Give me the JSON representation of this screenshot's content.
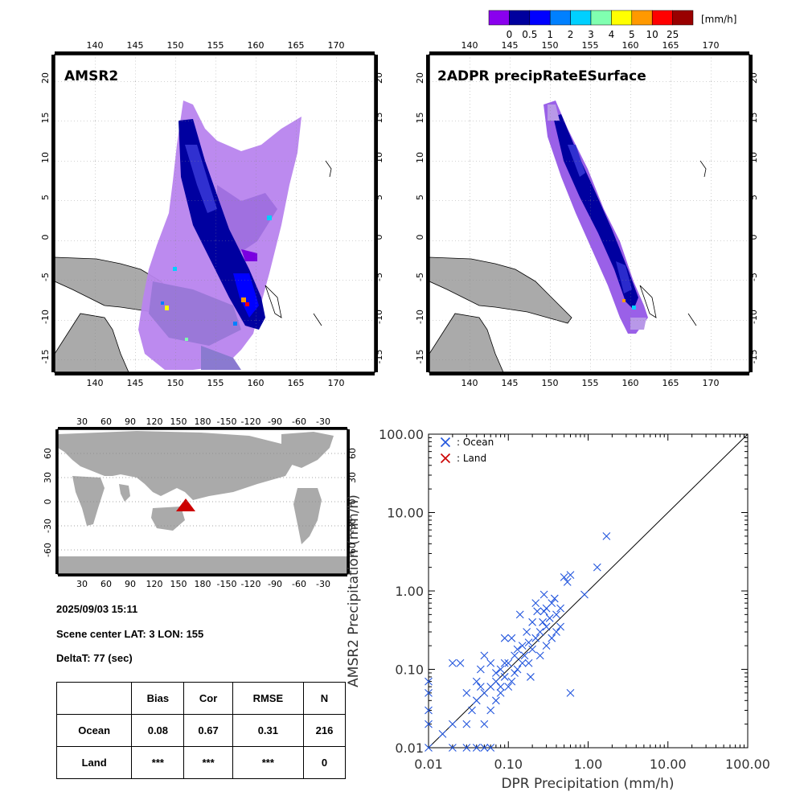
{
  "colorbar": {
    "unit": "[mm/h]",
    "colors": [
      "#8a00ee",
      "#00009e",
      "#0000ff",
      "#0080ff",
      "#00d0ff",
      "#80ffb0",
      "#ffff00",
      "#ff9900",
      "#ff0000",
      "#990000"
    ],
    "labels": [
      "0",
      "0.5",
      "1",
      "2",
      "3",
      "4",
      "5",
      "10",
      "25"
    ]
  },
  "map_lon_ticks": [
    "140",
    "145",
    "150",
    "155",
    "160",
    "165",
    "170"
  ],
  "map_lat_ticks": [
    "20",
    "15",
    "10",
    "5",
    "0",
    "-5",
    "-10",
    "-15"
  ],
  "left_map": {
    "title": "AMSR2"
  },
  "right_map": {
    "title": "2ADPR precipRateESurface"
  },
  "world_map": {
    "lon_ticks": [
      "30",
      "60",
      "90",
      "120",
      "150",
      "180",
      "-150",
      "-120",
      "-90",
      "-60",
      "-30"
    ],
    "lat_ticks": [
      "60",
      "30",
      "0",
      "-30",
      "-60"
    ],
    "marker_color": "#cc0000"
  },
  "info": {
    "datetime": "2025/09/03 15:11",
    "scene_center": "Scene center LAT:  3   LON: 155",
    "deltat": "DeltaT:   77 (sec)"
  },
  "stats": {
    "headers": [
      "",
      "Bias",
      "Cor",
      "RMSE",
      "N"
    ],
    "rows": [
      [
        "Ocean",
        "0.08",
        "0.67",
        "0.31",
        "216"
      ],
      [
        "Land",
        "***",
        "***",
        "***",
        "0"
      ]
    ]
  },
  "chart_data": {
    "type": "scatter",
    "xlabel": "DPR Precipitation (mm/h)",
    "ylabel": "AMSR2 Precipitation (mm/h)",
    "xscale": "log",
    "yscale": "log",
    "xlim": [
      0.01,
      100
    ],
    "ylim": [
      0.01,
      100
    ],
    "tick_labels": [
      "0.01",
      "0.10",
      "1.00",
      "10.00",
      "100.00"
    ],
    "legend": [
      {
        "name": ": Ocean",
        "color": "#2255dd"
      },
      {
        "name": ": Land",
        "color": "#cc0000"
      }
    ],
    "legend_position": "top-left",
    "reference_line": "1:1",
    "series": [
      {
        "name": ": Ocean",
        "color": "#2255dd",
        "points": [
          [
            1.7,
            5.0
          ],
          [
            1.3,
            2.0
          ],
          [
            0.9,
            0.9
          ],
          [
            0.6,
            0.05
          ],
          [
            0.6,
            1.6
          ],
          [
            0.55,
            1.3
          ],
          [
            0.5,
            1.5
          ],
          [
            0.45,
            0.6
          ],
          [
            0.4,
            0.5
          ],
          [
            0.38,
            0.8
          ],
          [
            0.35,
            0.7
          ],
          [
            0.33,
            0.45
          ],
          [
            0.3,
            0.6
          ],
          [
            0.3,
            0.35
          ],
          [
            0.28,
            0.9
          ],
          [
            0.27,
            0.4
          ],
          [
            0.25,
            0.3
          ],
          [
            0.23,
            0.55
          ],
          [
            0.22,
            0.25
          ],
          [
            0.2,
            0.18
          ],
          [
            0.2,
            0.4
          ],
          [
            0.18,
            0.22
          ],
          [
            0.17,
            0.3
          ],
          [
            0.16,
            0.15
          ],
          [
            0.15,
            0.2
          ],
          [
            0.15,
            0.12
          ],
          [
            0.14,
            0.5
          ],
          [
            0.13,
            0.1
          ],
          [
            0.12,
            0.15
          ],
          [
            0.12,
            0.09
          ],
          [
            0.11,
            0.07
          ],
          [
            0.1,
            0.12
          ],
          [
            0.1,
            0.06
          ],
          [
            0.09,
            0.08
          ],
          [
            0.09,
            0.25
          ],
          [
            0.08,
            0.1
          ],
          [
            0.08,
            0.05
          ],
          [
            0.07,
            0.07
          ],
          [
            0.07,
            0.04
          ],
          [
            0.06,
            0.06
          ],
          [
            0.06,
            0.03
          ],
          [
            0.05,
            0.05
          ],
          [
            0.05,
            0.15
          ],
          [
            0.05,
            0.02
          ],
          [
            0.045,
            0.1
          ],
          [
            0.04,
            0.04
          ],
          [
            0.04,
            0.07
          ],
          [
            0.035,
            0.03
          ],
          [
            0.03,
            0.05
          ],
          [
            0.03,
            0.02
          ],
          [
            0.025,
            0.12
          ],
          [
            0.02,
            0.02
          ],
          [
            0.02,
            0.12
          ],
          [
            0.02,
            0.01
          ],
          [
            0.03,
            0.01
          ],
          [
            0.04,
            0.01
          ],
          [
            0.05,
            0.01
          ],
          [
            0.06,
            0.01
          ],
          [
            0.01,
            0.05
          ],
          [
            0.01,
            0.07
          ],
          [
            0.01,
            0.03
          ],
          [
            0.01,
            0.02
          ],
          [
            0.01,
            0.01
          ],
          [
            0.015,
            0.015
          ],
          [
            0.3,
            0.2
          ],
          [
            0.25,
            0.15
          ],
          [
            0.22,
            0.7
          ],
          [
            0.35,
            0.25
          ],
          [
            0.45,
            0.35
          ],
          [
            0.18,
            0.12
          ],
          [
            0.13,
            0.18
          ],
          [
            0.11,
            0.25
          ],
          [
            0.09,
            0.12
          ],
          [
            0.07,
            0.09
          ],
          [
            0.06,
            0.12
          ],
          [
            0.08,
            0.06
          ],
          [
            0.045,
            0.06
          ],
          [
            0.4,
            0.3
          ],
          [
            0.28,
            0.55
          ],
          [
            0.19,
            0.08
          ]
        ]
      },
      {
        "name": ": Land",
        "color": "#cc0000",
        "points": []
      }
    ]
  }
}
